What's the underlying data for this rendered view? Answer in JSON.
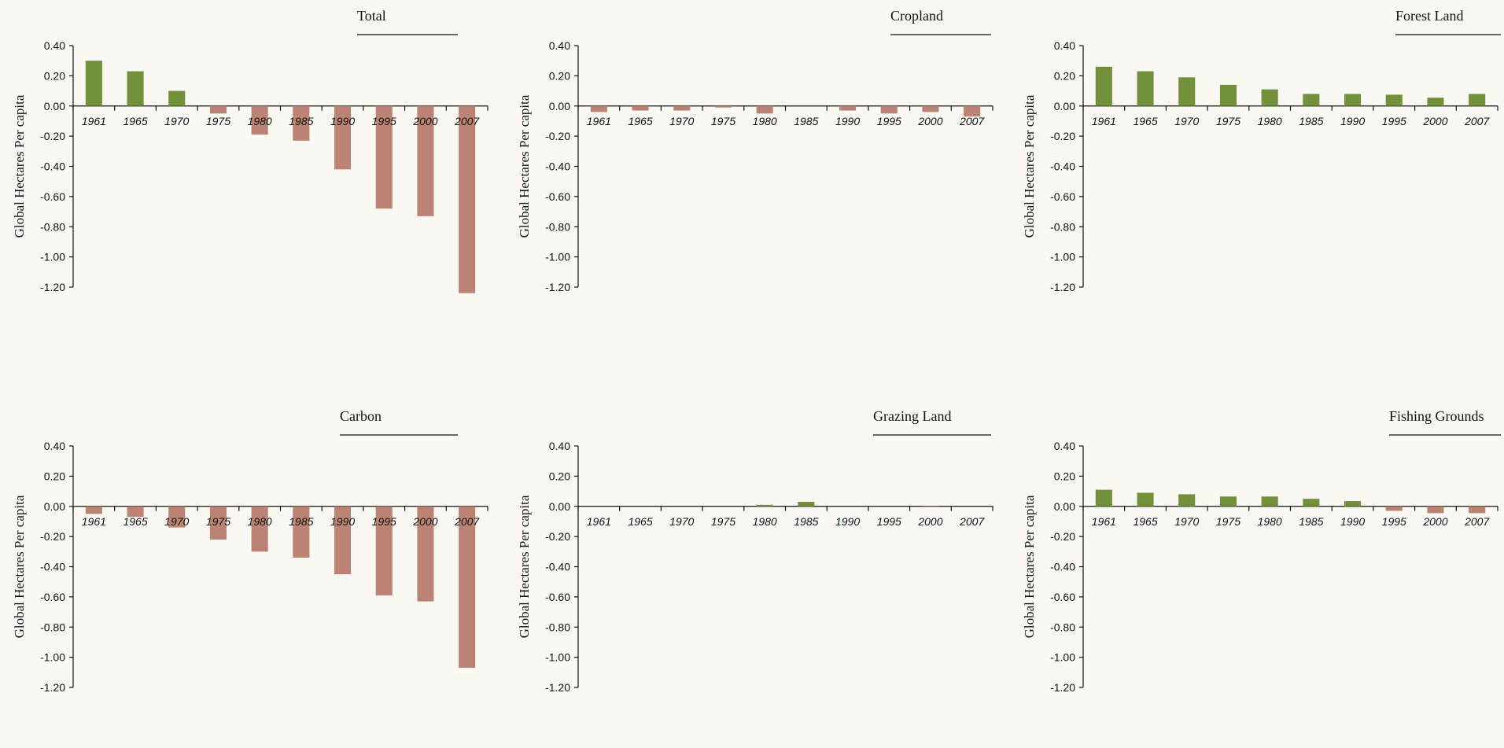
{
  "chart_data": [
    {
      "type": "bar",
      "title": "Total",
      "ylabel": "Global Hectares Per capita",
      "categories": [
        "1961",
        "1965",
        "1970",
        "1975",
        "1980",
        "1985",
        "1990",
        "1995",
        "2000",
        "2007"
      ],
      "values": [
        0.3,
        0.23,
        0.1,
        -0.05,
        -0.19,
        -0.23,
        -0.42,
        -0.68,
        -0.73,
        -1.24
      ],
      "ylim": [
        -1.2,
        0.4
      ],
      "yticks": [
        "0.40",
        "0.20",
        "0.00",
        "-0.20",
        "-0.40",
        "-0.60",
        "-0.80",
        "-1.00",
        "-1.20"
      ],
      "colors": {
        "positive": "#73903a",
        "negative": "#bb8373"
      }
    },
    {
      "type": "bar",
      "title": "Cropland",
      "ylabel": "Global Hectares Per capita",
      "categories": [
        "1961",
        "1965",
        "1970",
        "1975",
        "1980",
        "1985",
        "1990",
        "1995",
        "2000",
        "2007"
      ],
      "values": [
        -0.04,
        -0.03,
        -0.03,
        -0.01,
        -0.05,
        0.0,
        -0.03,
        -0.05,
        -0.04,
        -0.07
      ],
      "ylim": [
        -1.2,
        0.4
      ],
      "yticks": [
        "0.40",
        "0.20",
        "0.00",
        "-0.20",
        "-0.40",
        "-0.60",
        "-0.80",
        "-1.00",
        "-1.20"
      ],
      "colors": {
        "positive": "#73903a",
        "negative": "#bb8373"
      }
    },
    {
      "type": "bar",
      "title": "Forest Land",
      "ylabel": "Global Hectares Per capita",
      "categories": [
        "1961",
        "1965",
        "1970",
        "1975",
        "1980",
        "1985",
        "1990",
        "1995",
        "2000",
        "2007"
      ],
      "values": [
        0.26,
        0.23,
        0.19,
        0.14,
        0.11,
        0.08,
        0.08,
        0.075,
        0.055,
        0.08
      ],
      "ylim": [
        -1.2,
        0.4
      ],
      "yticks": [
        "0.40",
        "0.20",
        "0.00",
        "-0.20",
        "-0.40",
        "-0.60",
        "-0.80",
        "-1.00",
        "-1.20"
      ],
      "colors": {
        "positive": "#73903a",
        "negative": "#bb8373"
      }
    },
    {
      "type": "bar",
      "title": "Carbon",
      "ylabel": "Global Hectares Per capita",
      "categories": [
        "1961",
        "1965",
        "1970",
        "1975",
        "1980",
        "1985",
        "1990",
        "1995",
        "2000",
        "2007"
      ],
      "values": [
        -0.05,
        -0.07,
        -0.14,
        -0.22,
        -0.3,
        -0.34,
        -0.45,
        -0.59,
        -0.63,
        -1.07
      ],
      "ylim": [
        -1.2,
        0.4
      ],
      "yticks": [
        "0.40",
        "0.20",
        "0.00",
        "-0.20",
        "-0.40",
        "-0.60",
        "-0.80",
        "-1.00",
        "-1.20"
      ],
      "colors": {
        "positive": "#73903a",
        "negative": "#bb8373"
      }
    },
    {
      "type": "bar",
      "title": "Grazing Land",
      "ylabel": "Global Hectares Per capita",
      "categories": [
        "1961",
        "1965",
        "1970",
        "1975",
        "1980",
        "1985",
        "1990",
        "1995",
        "2000",
        "2007"
      ],
      "values": [
        0.0,
        0.0,
        0.0,
        0.0,
        0.01,
        0.03,
        0.0,
        0.0,
        -0.005,
        0.0
      ],
      "ylim": [
        -1.2,
        0.4
      ],
      "yticks": [
        "0.40",
        "0.20",
        "0.00",
        "-0.20",
        "-0.40",
        "-0.60",
        "-0.80",
        "-1.00",
        "-1.20"
      ],
      "colors": {
        "positive": "#73903a",
        "negative": "#bb8373"
      }
    },
    {
      "type": "bar",
      "title": "Fishing Grounds",
      "ylabel": "Global Hectares Per capita",
      "categories": [
        "1961",
        "1965",
        "1970",
        "1975",
        "1980",
        "1985",
        "1990",
        "1995",
        "2000",
        "2007"
      ],
      "values": [
        0.11,
        0.09,
        0.08,
        0.065,
        0.065,
        0.05,
        0.035,
        -0.03,
        -0.045,
        -0.045
      ],
      "ylim": [
        -1.2,
        0.4
      ],
      "yticks": [
        "0.40",
        "0.20",
        "0.00",
        "-0.20",
        "-0.40",
        "-0.60",
        "-0.80",
        "-1.00",
        "-1.20"
      ],
      "colors": {
        "positive": "#73903a",
        "negative": "#bb8373"
      }
    }
  ]
}
